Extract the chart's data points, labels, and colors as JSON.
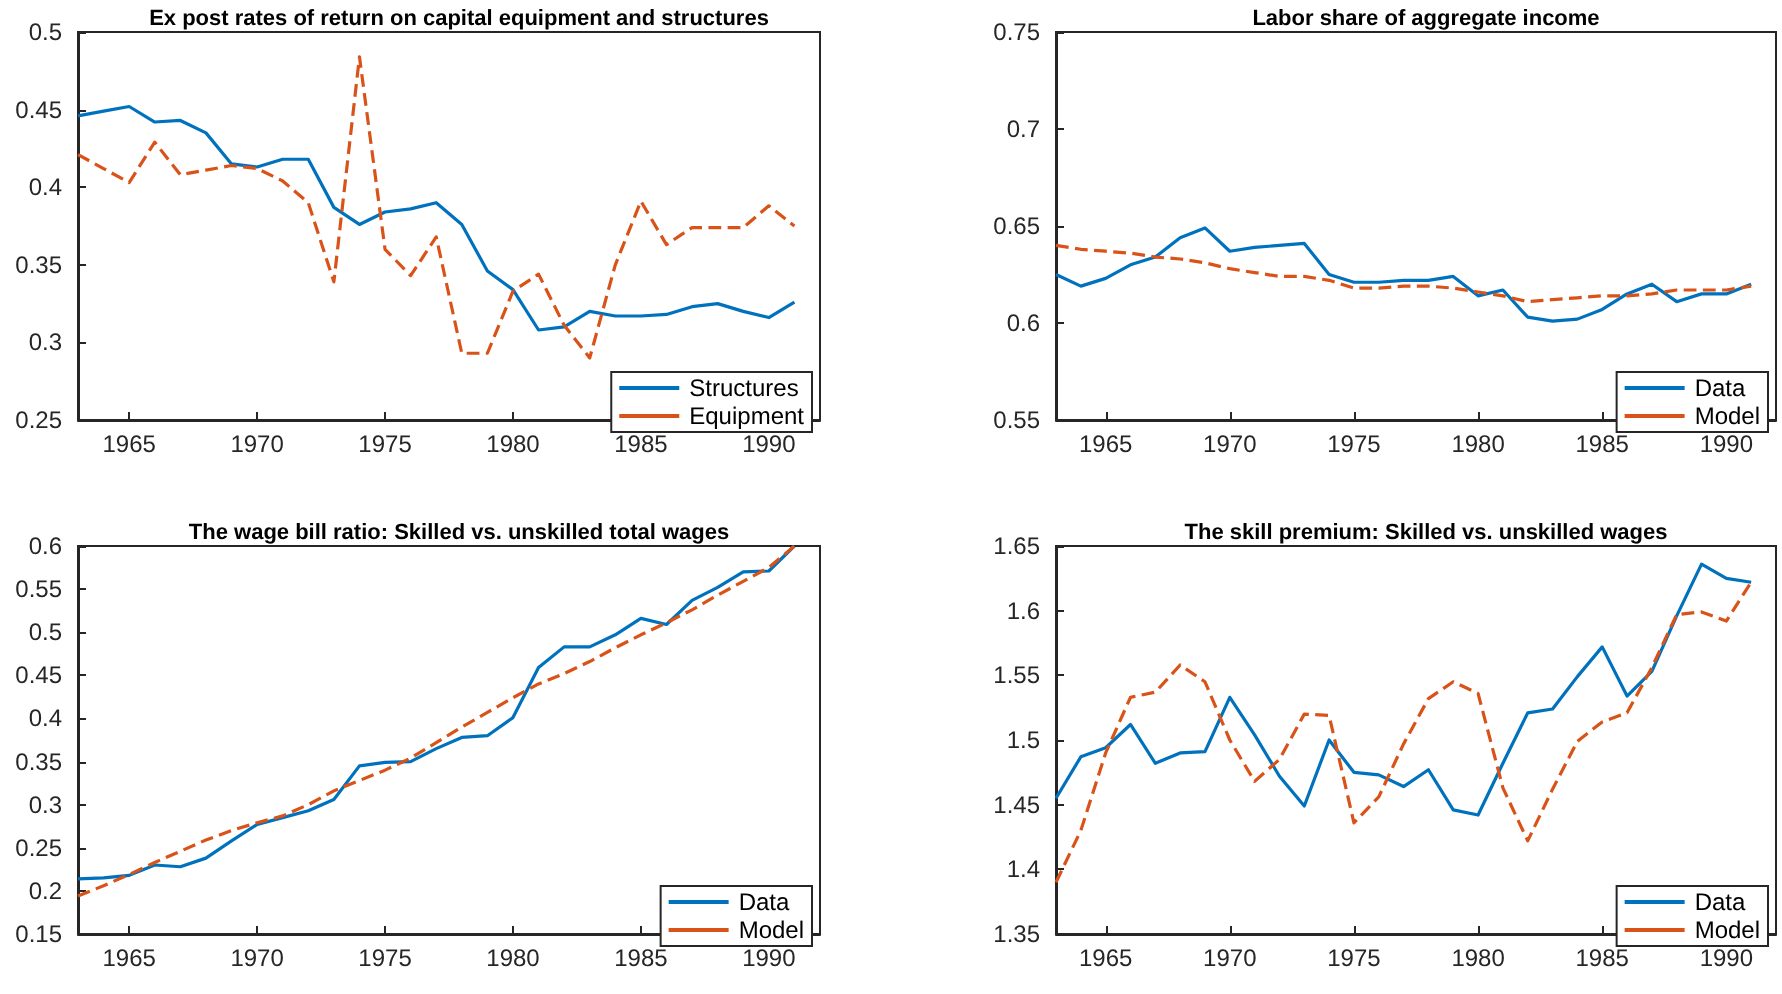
{
  "chart_data": [
    {
      "type": "line",
      "title": "Ex post rates of return on capital equipment and structures",
      "x": [
        1963,
        1964,
        1965,
        1966,
        1967,
        1968,
        1969,
        1970,
        1971,
        1972,
        1973,
        1974,
        1975,
        1976,
        1977,
        1978,
        1979,
        1980,
        1981,
        1982,
        1983,
        1984,
        1985,
        1986,
        1987,
        1988,
        1989,
        1990,
        1991
      ],
      "xlim": [
        1963,
        1992
      ],
      "xticks": [
        1965,
        1970,
        1975,
        1980,
        1985,
        1990
      ],
      "ylim": [
        0.25,
        0.5
      ],
      "yticks": [
        0.25,
        0.3,
        0.35,
        0.4,
        0.45,
        0.5
      ],
      "grid": false,
      "legend": "bottom right",
      "marker": "none",
      "series": [
        {
          "name": "Structures",
          "color": "#0072bd",
          "line_style": "solid",
          "values": [
            0.446,
            0.449,
            0.452,
            0.442,
            0.443,
            0.435,
            0.415,
            0.413,
            0.418,
            0.418,
            0.387,
            0.376,
            0.384,
            0.386,
            0.39,
            0.376,
            0.346,
            0.334,
            0.308,
            0.31,
            0.32,
            0.317,
            0.317,
            0.318,
            0.323,
            0.325,
            0.32,
            0.316,
            0.326
          ]
        },
        {
          "name": "Equipment",
          "color": "#d95319",
          "line_style": "dashed",
          "values": [
            0.421,
            0.412,
            0.403,
            0.429,
            0.408,
            0.411,
            0.414,
            0.412,
            0.404,
            0.39,
            0.339,
            0.484,
            0.36,
            0.343,
            0.368,
            0.293,
            0.293,
            0.333,
            0.344,
            0.311,
            0.29,
            0.35,
            0.391,
            0.363,
            0.374,
            0.374,
            0.374,
            0.388,
            0.375
          ]
        }
      ]
    },
    {
      "type": "line",
      "title": "Labor share of aggregate income",
      "x": [
        1963,
        1964,
        1965,
        1966,
        1967,
        1968,
        1969,
        1970,
        1971,
        1972,
        1973,
        1974,
        1975,
        1976,
        1977,
        1978,
        1979,
        1980,
        1981,
        1982,
        1983,
        1984,
        1985,
        1986,
        1987,
        1988,
        1989,
        1990,
        1991
      ],
      "xlim": [
        1963,
        1992
      ],
      "xticks": [
        1965,
        1970,
        1975,
        1980,
        1985,
        1990
      ],
      "ylim": [
        0.55,
        0.75
      ],
      "yticks": [
        0.55,
        0.6,
        0.65,
        0.7,
        0.75
      ],
      "grid": false,
      "legend": "bottom right",
      "marker": "none",
      "series": [
        {
          "name": "Data",
          "color": "#0072bd",
          "line_style": "solid",
          "values": [
            0.625,
            0.619,
            0.623,
            0.63,
            0.634,
            0.644,
            0.649,
            0.637,
            0.639,
            0.64,
            0.641,
            0.625,
            0.621,
            0.621,
            0.622,
            0.622,
            0.624,
            0.614,
            0.617,
            0.603,
            0.601,
            0.602,
            0.607,
            0.615,
            0.62,
            0.611,
            0.615,
            0.615,
            0.62
          ]
        },
        {
          "name": "Model",
          "color": "#d95319",
          "line_style": "dashed",
          "values": [
            0.64,
            0.638,
            0.637,
            0.636,
            0.634,
            0.633,
            0.631,
            0.628,
            0.626,
            0.624,
            0.624,
            0.622,
            0.618,
            0.618,
            0.619,
            0.619,
            0.618,
            0.616,
            0.614,
            0.611,
            0.612,
            0.613,
            0.614,
            0.614,
            0.615,
            0.617,
            0.617,
            0.617,
            0.619
          ]
        }
      ]
    },
    {
      "type": "line",
      "title": "The wage bill ratio: Skilled vs. unskilled total wages",
      "x": [
        1963,
        1964,
        1965,
        1966,
        1967,
        1968,
        1969,
        1970,
        1971,
        1972,
        1973,
        1974,
        1975,
        1976,
        1977,
        1978,
        1979,
        1980,
        1981,
        1982,
        1983,
        1984,
        1985,
        1986,
        1987,
        1988,
        1989,
        1990,
        1991
      ],
      "xlim": [
        1963,
        1992
      ],
      "xticks": [
        1965,
        1970,
        1975,
        1980,
        1985,
        1990
      ],
      "ylim": [
        0.15,
        0.6
      ],
      "yticks": [
        0.15,
        0.2,
        0.25,
        0.3,
        0.35,
        0.4,
        0.45,
        0.5,
        0.55,
        0.6
      ],
      "grid": false,
      "legend": "bottom right",
      "marker": "none",
      "series": [
        {
          "name": "Data",
          "color": "#0072bd",
          "line_style": "solid",
          "values": [
            0.214,
            0.215,
            0.218,
            0.23,
            0.228,
            0.238,
            0.258,
            0.277,
            0.285,
            0.293,
            0.306,
            0.345,
            0.349,
            0.35,
            0.365,
            0.378,
            0.38,
            0.401,
            0.459,
            0.483,
            0.483,
            0.497,
            0.516,
            0.509,
            0.537,
            0.552,
            0.57,
            0.571,
            0.6
          ]
        },
        {
          "name": "Model",
          "color": "#d95319",
          "line_style": "dashed",
          "values": [
            0.194,
            0.206,
            0.219,
            0.233,
            0.246,
            0.259,
            0.27,
            0.279,
            0.287,
            0.3,
            0.316,
            0.328,
            0.34,
            0.354,
            0.372,
            0.39,
            0.407,
            0.424,
            0.44,
            0.452,
            0.466,
            0.482,
            0.497,
            0.511,
            0.526,
            0.543,
            0.559,
            0.575,
            0.6
          ]
        }
      ]
    },
    {
      "type": "line",
      "title": "The skill premium: Skilled vs. unskilled wages",
      "x": [
        1963,
        1964,
        1965,
        1966,
        1967,
        1968,
        1969,
        1970,
        1971,
        1972,
        1973,
        1974,
        1975,
        1976,
        1977,
        1978,
        1979,
        1980,
        1981,
        1982,
        1983,
        1984,
        1985,
        1986,
        1987,
        1988,
        1989,
        1990,
        1991
      ],
      "xlim": [
        1963,
        1992
      ],
      "xticks": [
        1965,
        1970,
        1975,
        1980,
        1985,
        1990
      ],
      "ylim": [
        1.35,
        1.65
      ],
      "yticks": [
        1.35,
        1.4,
        1.45,
        1.5,
        1.55,
        1.6,
        1.65
      ],
      "grid": false,
      "legend": "bottom right",
      "marker": "none",
      "series": [
        {
          "name": "Data",
          "color": "#0072bd",
          "line_style": "solid",
          "values": [
            1.455,
            1.487,
            1.494,
            1.512,
            1.482,
            1.49,
            1.491,
            1.533,
            1.504,
            1.472,
            1.449,
            1.5,
            1.475,
            1.473,
            1.464,
            1.477,
            1.446,
            1.442,
            1.482,
            1.521,
            1.524,
            1.549,
            1.572,
            1.534,
            1.553,
            1.596,
            1.636,
            1.625,
            1.622
          ]
        },
        {
          "name": "Model",
          "color": "#d95319",
          "line_style": "dashed",
          "values": [
            1.39,
            1.43,
            1.49,
            1.533,
            1.537,
            1.558,
            1.545,
            1.5,
            1.468,
            1.485,
            1.52,
            1.519,
            1.436,
            1.456,
            1.497,
            1.532,
            1.545,
            1.536,
            1.463,
            1.422,
            1.462,
            1.499,
            1.514,
            1.521,
            1.556,
            1.597,
            1.599,
            1.592,
            1.622
          ]
        }
      ]
    }
  ]
}
